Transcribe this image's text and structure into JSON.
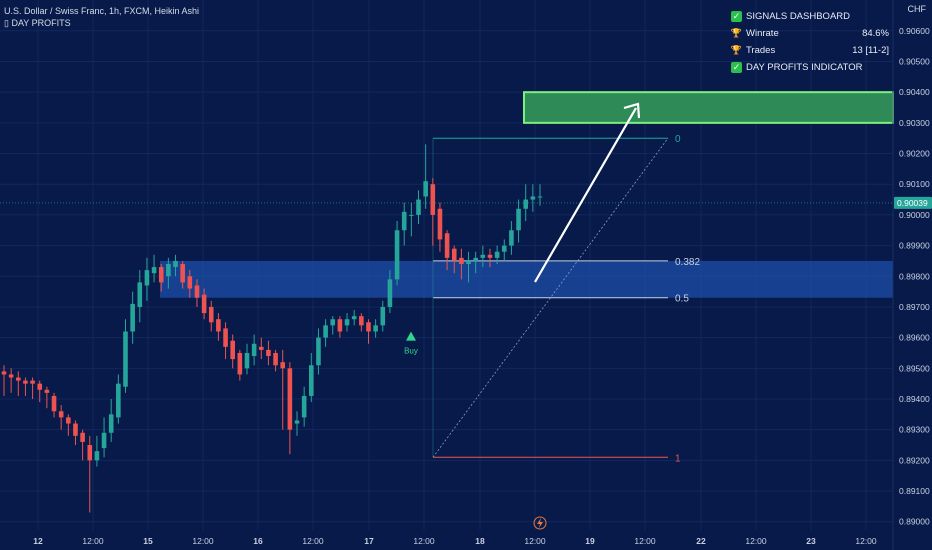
{
  "header": {
    "symbol_line": "U.S. Dollar / Swiss Franc, 1h, FXCM, Heikin Ashi",
    "indicator_line": "▯ DAY PROFITS"
  },
  "dashboard": {
    "rows": [
      {
        "icon": "check-icon",
        "label": "SIGNALS DASHBOARD",
        "value": ""
      },
      {
        "icon": "trophy-icon",
        "label": "Winrate",
        "value": "84.6%"
      },
      {
        "icon": "trophy-icon",
        "label": "Trades",
        "value": "13 [11-2]"
      },
      {
        "icon": "check-icon",
        "label": "DAY PROFITS INDICATOR",
        "value": ""
      }
    ]
  },
  "colors": {
    "background": "#071a4a",
    "bull": "#26a69a",
    "bear": "#ef5350",
    "tp_zone": "#2e8b57",
    "entry_zone": "#1e4fa8",
    "grid": "#12275c"
  },
  "chart_data": {
    "type": "candlestick",
    "currency": "CHF",
    "last_price": "0.90039",
    "ylim": [
      0.8896,
      0.9066
    ],
    "y_ticks": [
      "0.90600",
      "0.90500",
      "0.90400",
      "0.90300",
      "0.90200",
      "0.90100",
      "0.90000",
      "0.89900",
      "0.89800",
      "0.89700",
      "0.89600",
      "0.89500",
      "0.89400",
      "0.89300",
      "0.89200",
      "0.89100",
      "0.89000"
    ],
    "x_ticks": [
      "12",
      "12:00",
      "15",
      "12:00",
      "16",
      "12:00",
      "17",
      "12:00",
      "18",
      "12:00",
      "19",
      "12:00",
      "22",
      "12:00",
      "23",
      "12:00"
    ],
    "tp_zone": [
      0.903,
      0.904
    ],
    "entry_zone": [
      0.8973,
      0.8985
    ],
    "fib_levels": [
      {
        "label": "0",
        "value": 0.9025
      },
      {
        "label": "0.382",
        "value": 0.8985
      },
      {
        "label": "0.5",
        "value": 0.8973
      },
      {
        "label": "1",
        "value": 0.8921
      }
    ],
    "signal": {
      "label": "Buy",
      "price": 0.896
    },
    "candles": [
      [
        0.8949,
        0.8951,
        0.8948,
        0.8941
      ],
      [
        0.8948,
        0.895,
        0.8947,
        0.8942
      ],
      [
        0.8947,
        0.8949,
        0.8946,
        0.8941
      ],
      [
        0.8946,
        0.8947,
        0.8945,
        0.8941
      ],
      [
        0.8946,
        0.8947,
        0.8945,
        0.894
      ],
      [
        0.8945,
        0.8946,
        0.8943,
        0.8939
      ],
      [
        0.8943,
        0.8944,
        0.8942,
        0.8937
      ],
      [
        0.8941,
        0.8942,
        0.8936,
        0.8934
      ],
      [
        0.8936,
        0.8938,
        0.8934,
        0.893
      ],
      [
        0.8934,
        0.8935,
        0.8932,
        0.8928
      ],
      [
        0.8932,
        0.8933,
        0.8928,
        0.8925
      ],
      [
        0.8929,
        0.893,
        0.8926,
        0.892
      ],
      [
        0.8925,
        0.8928,
        0.892,
        0.8903
      ],
      [
        0.892,
        0.8928,
        0.8923,
        0.8918
      ],
      [
        0.8924,
        0.8934,
        0.8929,
        0.8921
      ],
      [
        0.8929,
        0.894,
        0.8935,
        0.8926
      ],
      [
        0.8934,
        0.8948,
        0.8945,
        0.8932
      ],
      [
        0.8944,
        0.8966,
        0.8962,
        0.8942
      ],
      [
        0.8962,
        0.8975,
        0.8971,
        0.8958
      ],
      [
        0.897,
        0.8982,
        0.8978,
        0.8965
      ],
      [
        0.8977,
        0.8986,
        0.8982,
        0.8972
      ],
      [
        0.8981,
        0.8987,
        0.8983,
        0.8978
      ],
      [
        0.8983,
        0.8984,
        0.8978,
        0.8975
      ],
      [
        0.898,
        0.8986,
        0.8984,
        0.8976
      ],
      [
        0.8983,
        0.8987,
        0.8985,
        0.898
      ],
      [
        0.8984,
        0.8985,
        0.8978,
        0.8976
      ],
      [
        0.898,
        0.8982,
        0.8976,
        0.8973
      ],
      [
        0.8977,
        0.8979,
        0.8973,
        0.897
      ],
      [
        0.8974,
        0.8976,
        0.8968,
        0.8966
      ],
      [
        0.897,
        0.8972,
        0.8965,
        0.8962
      ],
      [
        0.8966,
        0.8968,
        0.8962,
        0.8959
      ],
      [
        0.8963,
        0.8965,
        0.8957,
        0.8953
      ],
      [
        0.8959,
        0.8961,
        0.8953,
        0.895
      ],
      [
        0.8955,
        0.8956,
        0.8948,
        0.8946
      ],
      [
        0.895,
        0.8958,
        0.8955,
        0.8948
      ],
      [
        0.8954,
        0.8961,
        0.8958,
        0.8951
      ],
      [
        0.8957,
        0.896,
        0.8956,
        0.8953
      ],
      [
        0.8956,
        0.8959,
        0.8954,
        0.8951
      ],
      [
        0.8955,
        0.8956,
        0.8951,
        0.8949
      ],
      [
        0.8952,
        0.8956,
        0.895,
        0.893
      ],
      [
        0.895,
        0.8952,
        0.893,
        0.8922
      ],
      [
        0.8932,
        0.8936,
        0.8933,
        0.8928
      ],
      [
        0.8934,
        0.8944,
        0.8941,
        0.8931
      ],
      [
        0.8941,
        0.8955,
        0.8951,
        0.8939
      ],
      [
        0.8951,
        0.8963,
        0.896,
        0.8948
      ],
      [
        0.896,
        0.8966,
        0.8964,
        0.8957
      ],
      [
        0.8964,
        0.8967,
        0.8966,
        0.8961
      ],
      [
        0.8966,
        0.8967,
        0.8962,
        0.896
      ],
      [
        0.8964,
        0.8968,
        0.8966,
        0.8962
      ],
      [
        0.8966,
        0.8969,
        0.8967,
        0.8964
      ],
      [
        0.8967,
        0.8968,
        0.8964,
        0.8962
      ],
      [
        0.8965,
        0.8966,
        0.8962,
        0.8958
      ],
      [
        0.8962,
        0.8966,
        0.8964,
        0.896
      ],
      [
        0.8964,
        0.8972,
        0.897,
        0.8962
      ],
      [
        0.897,
        0.8982,
        0.8979,
        0.8968
      ],
      [
        0.8979,
        0.8998,
        0.8995,
        0.8977
      ],
      [
        0.8995,
        0.9004,
        0.9001,
        0.899
      ],
      [
        0.9,
        0.9004,
        0.9,
        0.8993
      ],
      [
        0.9,
        0.9008,
        0.9005,
        0.8997
      ],
      [
        0.9006,
        0.9023,
        0.9011,
        0.9002
      ],
      [
        0.901,
        0.9012,
        0.9,
        0.899
      ],
      [
        0.9002,
        0.9004,
        0.8992,
        0.8988
      ],
      [
        0.8994,
        0.8995,
        0.8986,
        0.8982
      ],
      [
        0.8989,
        0.899,
        0.8985,
        0.8981
      ],
      [
        0.8986,
        0.8989,
        0.8984,
        0.8979
      ],
      [
        0.8984,
        0.8988,
        0.8985,
        0.8978
      ],
      [
        0.8985,
        0.8988,
        0.8986,
        0.8981
      ],
      [
        0.8986,
        0.899,
        0.8987,
        0.8983
      ],
      [
        0.8987,
        0.8989,
        0.8986,
        0.8983
      ],
      [
        0.8986,
        0.899,
        0.8988,
        0.8984
      ],
      [
        0.8988,
        0.8992,
        0.899,
        0.8985
      ],
      [
        0.899,
        0.8998,
        0.8995,
        0.8987
      ],
      [
        0.8995,
        0.9005,
        0.9002,
        0.8991
      ],
      [
        0.9002,
        0.901,
        0.9005,
        0.8998
      ],
      [
        0.9005,
        0.901,
        0.9006,
        0.9001
      ],
      [
        0.9006,
        0.901,
        0.9006,
        0.9003
      ]
    ]
  }
}
